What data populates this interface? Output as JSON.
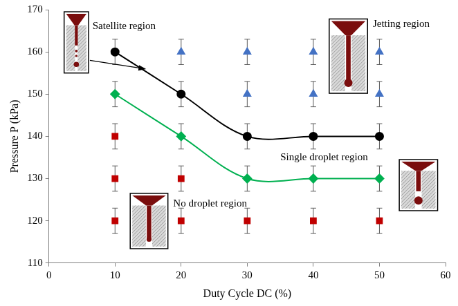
{
  "chart_data": {
    "type": "scatter",
    "x_label": "Duty Cycle DC (%)",
    "y_label": "Pressure P (kPa)",
    "xlim": [
      0,
      60
    ],
    "xticks": [
      0,
      10,
      20,
      30,
      40,
      50,
      60
    ],
    "ylim": [
      110,
      170
    ],
    "yticks": [
      110,
      120,
      130,
      140,
      150,
      160,
      170
    ],
    "grid": false,
    "series": [
      {
        "type": "line",
        "color": "#000000",
        "marker": "circle",
        "x": [
          10,
          20,
          30,
          40,
          50
        ],
        "values": [
          160,
          150,
          140,
          140,
          140
        ],
        "error": [
          3,
          3,
          3,
          3,
          3
        ]
      },
      {
        "type": "line",
        "color": "#00b050",
        "marker": "diamond",
        "x": [
          10,
          20,
          30,
          40,
          50
        ],
        "values": [
          150,
          140,
          130,
          130,
          130
        ],
        "error": [
          3,
          3,
          3,
          3,
          3
        ]
      },
      {
        "type": "scatter",
        "color": "#4472c4",
        "marker": "triangle",
        "x": [
          20,
          30,
          30,
          40,
          40,
          50,
          50
        ],
        "values": [
          160,
          150,
          160,
          150,
          160,
          150,
          160
        ],
        "error": [
          3,
          3,
          3,
          3,
          3,
          3,
          3
        ]
      },
      {
        "type": "scatter",
        "color": "#c00000",
        "marker": "square",
        "x": [
          10,
          10,
          10,
          20,
          20,
          30,
          40,
          50
        ],
        "values": [
          120,
          130,
          140,
          120,
          130,
          120,
          120,
          120
        ],
        "error": [
          3,
          3,
          3,
          3,
          3,
          3,
          3,
          3
        ]
      }
    ],
    "annotations": [
      "Satellite region",
      "Jetting region",
      "Single droplet region",
      "No droplet region"
    ]
  }
}
